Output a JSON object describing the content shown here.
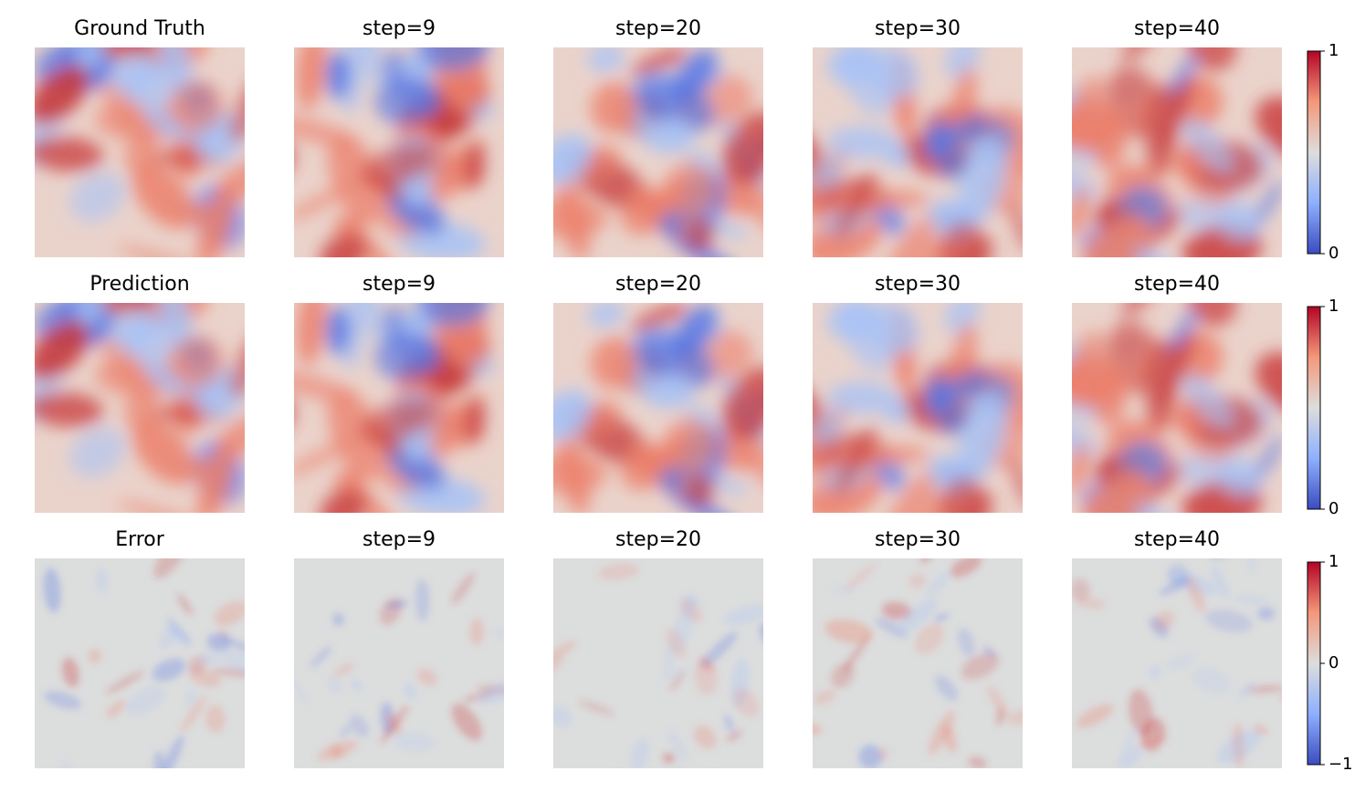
{
  "rows": [
    {
      "titles": [
        "Ground Truth",
        "step=9",
        "step=20",
        "step=30",
        "step=40"
      ],
      "colorbar": {
        "ylim": [
          0,
          1
        ],
        "yticks": [
          0,
          1
        ]
      }
    },
    {
      "titles": [
        "Prediction",
        "step=9",
        "step=20",
        "step=30",
        "step=40"
      ],
      "colorbar": {
        "ylim": [
          0,
          1
        ],
        "yticks": [
          0,
          1
        ]
      }
    },
    {
      "titles": [
        "Error",
        "step=9",
        "step=20",
        "step=30",
        "step=40"
      ],
      "colorbar": {
        "ylim": [
          -1,
          1
        ],
        "yticks": [
          {
            "value": -1,
            "label": "−1"
          },
          0,
          1
        ]
      }
    }
  ]
}
